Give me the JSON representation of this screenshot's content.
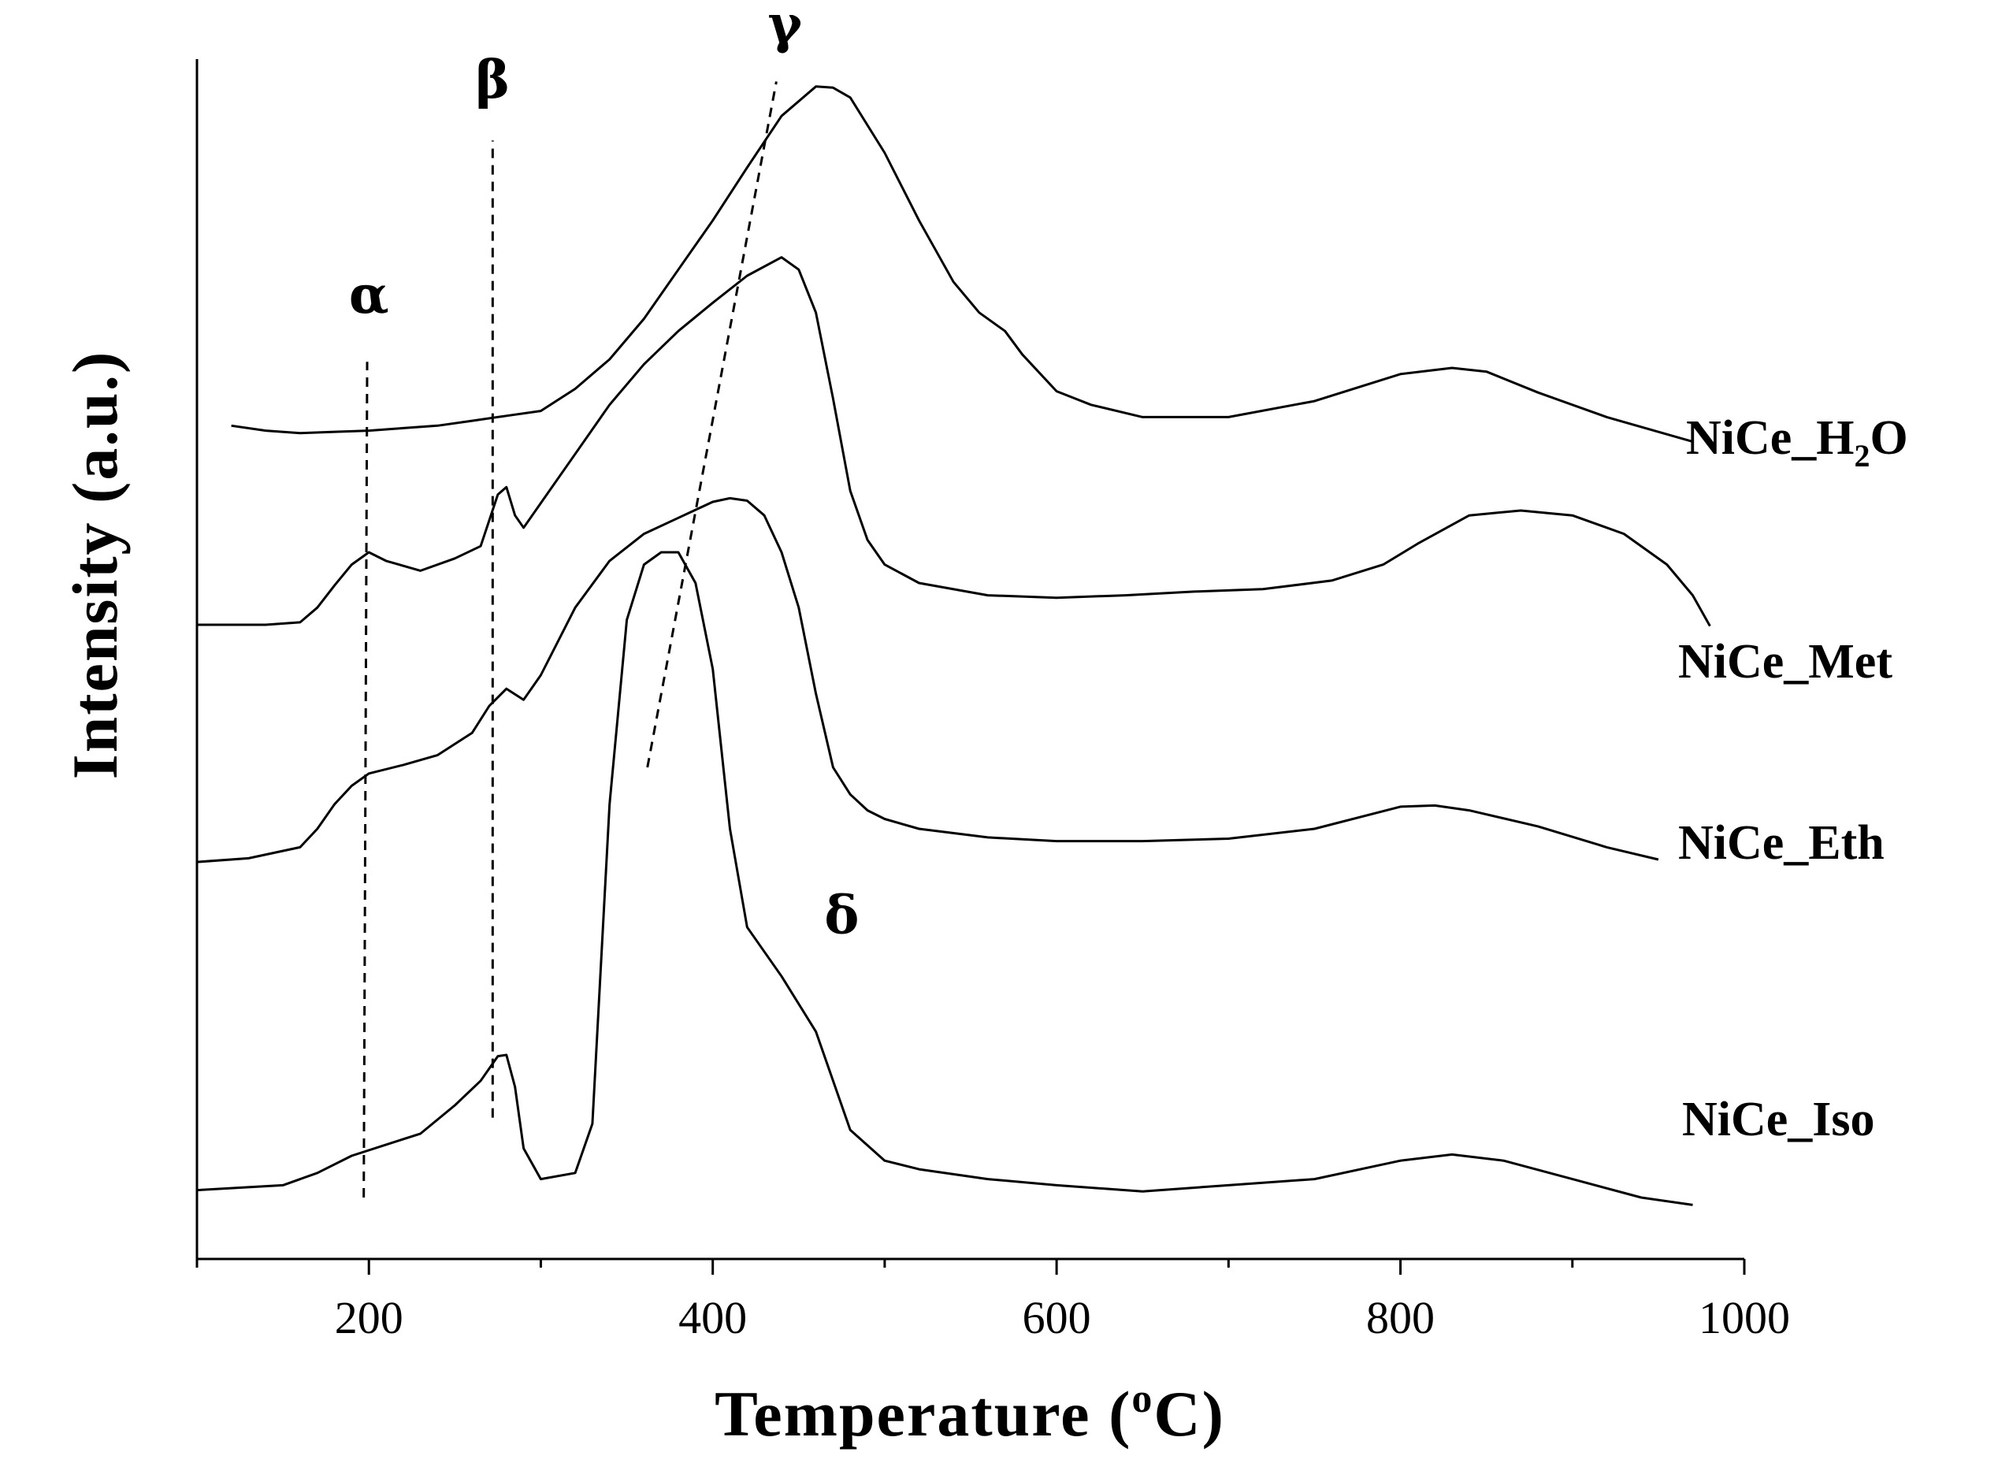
{
  "chart_data": {
    "type": "line",
    "title": "",
    "xlabel": "Temperature (",
    "xlabel_sup": "o",
    "xlabel_tail": "C)",
    "ylabel": "Intensity (a.u.)",
    "xlim": [
      100,
      1000
    ],
    "ylim": [
      0,
      100
    ],
    "x_ticks": [
      200,
      400,
      600,
      800,
      1000
    ],
    "x_tick_labels": [
      "200",
      "400",
      "600",
      "800",
      "1000"
    ],
    "y_ticks_shown": false,
    "series": [
      {
        "name": "NiCe_H2O",
        "label_main": "NiCe_H",
        "label_sub": "2",
        "label_tail": "O",
        "x": [
          120,
          140,
          160,
          180,
          200,
          220,
          240,
          260,
          280,
          300,
          320,
          340,
          360,
          380,
          400,
          420,
          440,
          460,
          470,
          480,
          500,
          520,
          540,
          555,
          570,
          580,
          600,
          620,
          650,
          700,
          750,
          800,
          830,
          850,
          880,
          920,
          970
        ],
        "y": [
          67.8,
          67.4,
          67.2,
          67.3,
          67.4,
          67.6,
          67.8,
          68.2,
          68.6,
          69.0,
          70.8,
          73.2,
          76.5,
          80.5,
          84.5,
          88.8,
          93.0,
          95.4,
          95.3,
          94.5,
          90.0,
          84.5,
          79.5,
          77.0,
          75.5,
          73.6,
          70.6,
          69.5,
          68.5,
          68.5,
          69.8,
          72.0,
          72.5,
          72.2,
          70.5,
          68.5,
          66.5
        ]
      },
      {
        "name": "NiCe_Met",
        "label_main": "NiCe_Met",
        "x": [
          100,
          120,
          140,
          160,
          170,
          180,
          190,
          200,
          210,
          230,
          250,
          265,
          275,
          280,
          285,
          290,
          300,
          320,
          340,
          360,
          380,
          400,
          420,
          440,
          450,
          460,
          470,
          480,
          490,
          500,
          520,
          560,
          600,
          640,
          680,
          720,
          760,
          790,
          810,
          840,
          870,
          900,
          930,
          955,
          970,
          980
        ],
        "y": [
          51.6,
          51.6,
          51.6,
          51.8,
          53.0,
          54.8,
          56.5,
          57.5,
          56.8,
          56.0,
          57.0,
          58.0,
          62.2,
          62.8,
          60.5,
          59.5,
          61.5,
          65.5,
          69.5,
          72.8,
          75.5,
          77.8,
          80.0,
          81.5,
          80.5,
          77.0,
          70.0,
          62.5,
          58.5,
          56.5,
          55.0,
          54.0,
          53.8,
          54.0,
          54.3,
          54.5,
          55.2,
          56.5,
          58.2,
          60.5,
          60.9,
          60.5,
          59.0,
          56.5,
          54.0,
          51.5
        ]
      },
      {
        "name": "NiCe_Eth",
        "label_main": "NiCe_Eth",
        "x": [
          100,
          130,
          160,
          170,
          180,
          190,
          200,
          220,
          240,
          260,
          270,
          280,
          290,
          300,
          320,
          340,
          360,
          380,
          400,
          410,
          420,
          430,
          440,
          450,
          460,
          470,
          480,
          490,
          500,
          520,
          560,
          600,
          650,
          700,
          750,
          800,
          820,
          840,
          880,
          920,
          950
        ],
        "y": [
          32.3,
          32.6,
          33.5,
          35.0,
          37.0,
          38.5,
          39.5,
          40.2,
          41.0,
          42.8,
          45.0,
          46.4,
          45.5,
          47.5,
          53.0,
          56.8,
          59.0,
          60.3,
          61.6,
          61.9,
          61.7,
          60.5,
          57.5,
          53.0,
          46.0,
          40.0,
          37.8,
          36.5,
          35.8,
          35.0,
          34.3,
          34.0,
          34.0,
          34.2,
          35.0,
          36.8,
          36.9,
          36.5,
          35.2,
          33.5,
          32.5
        ]
      },
      {
        "name": "NiCe_Iso",
        "label_main": "NiCe_Iso",
        "x": [
          100,
          150,
          170,
          190,
          210,
          230,
          250,
          265,
          275,
          280,
          285,
          290,
          300,
          320,
          330,
          340,
          350,
          360,
          370,
          380,
          390,
          400,
          410,
          420,
          440,
          460,
          480,
          500,
          520,
          560,
          600,
          650,
          700,
          750,
          800,
          830,
          860,
          900,
          940,
          970
        ],
        "y": [
          5.6,
          6.0,
          7.0,
          8.4,
          9.3,
          10.2,
          12.5,
          14.5,
          16.5,
          16.6,
          14.0,
          9.0,
          6.5,
          7.0,
          11.0,
          37.0,
          52.0,
          56.5,
          57.5,
          57.5,
          55.0,
          48.0,
          35.0,
          27.0,
          23.0,
          18.5,
          10.5,
          8.0,
          7.3,
          6.5,
          6.0,
          5.5,
          6.0,
          6.5,
          8.0,
          8.5,
          8.0,
          6.5,
          5.0,
          4.4
        ]
      }
    ],
    "annotations": [
      {
        "text": "α",
        "kind": "dashed-line",
        "x1": 197,
        "y1": 5.0,
        "x2": 199,
        "y2": 73.0,
        "label_x": 200,
        "label_y": 77.0
      },
      {
        "text": "β",
        "kind": "dashed-line",
        "x1": 272,
        "y1": 11.5,
        "x2": 272,
        "y2": 91.0,
        "label_x": 272,
        "label_y": 94.5
      },
      {
        "text": "γ",
        "kind": "dashed-line",
        "x1": 362,
        "y1": 40.0,
        "x2": 437,
        "y2": 95.8,
        "label_x": 442,
        "label_y": 99.0
      },
      {
        "text": "δ",
        "kind": "label",
        "label_x": 475,
        "label_y": 26.5
      }
    ]
  }
}
